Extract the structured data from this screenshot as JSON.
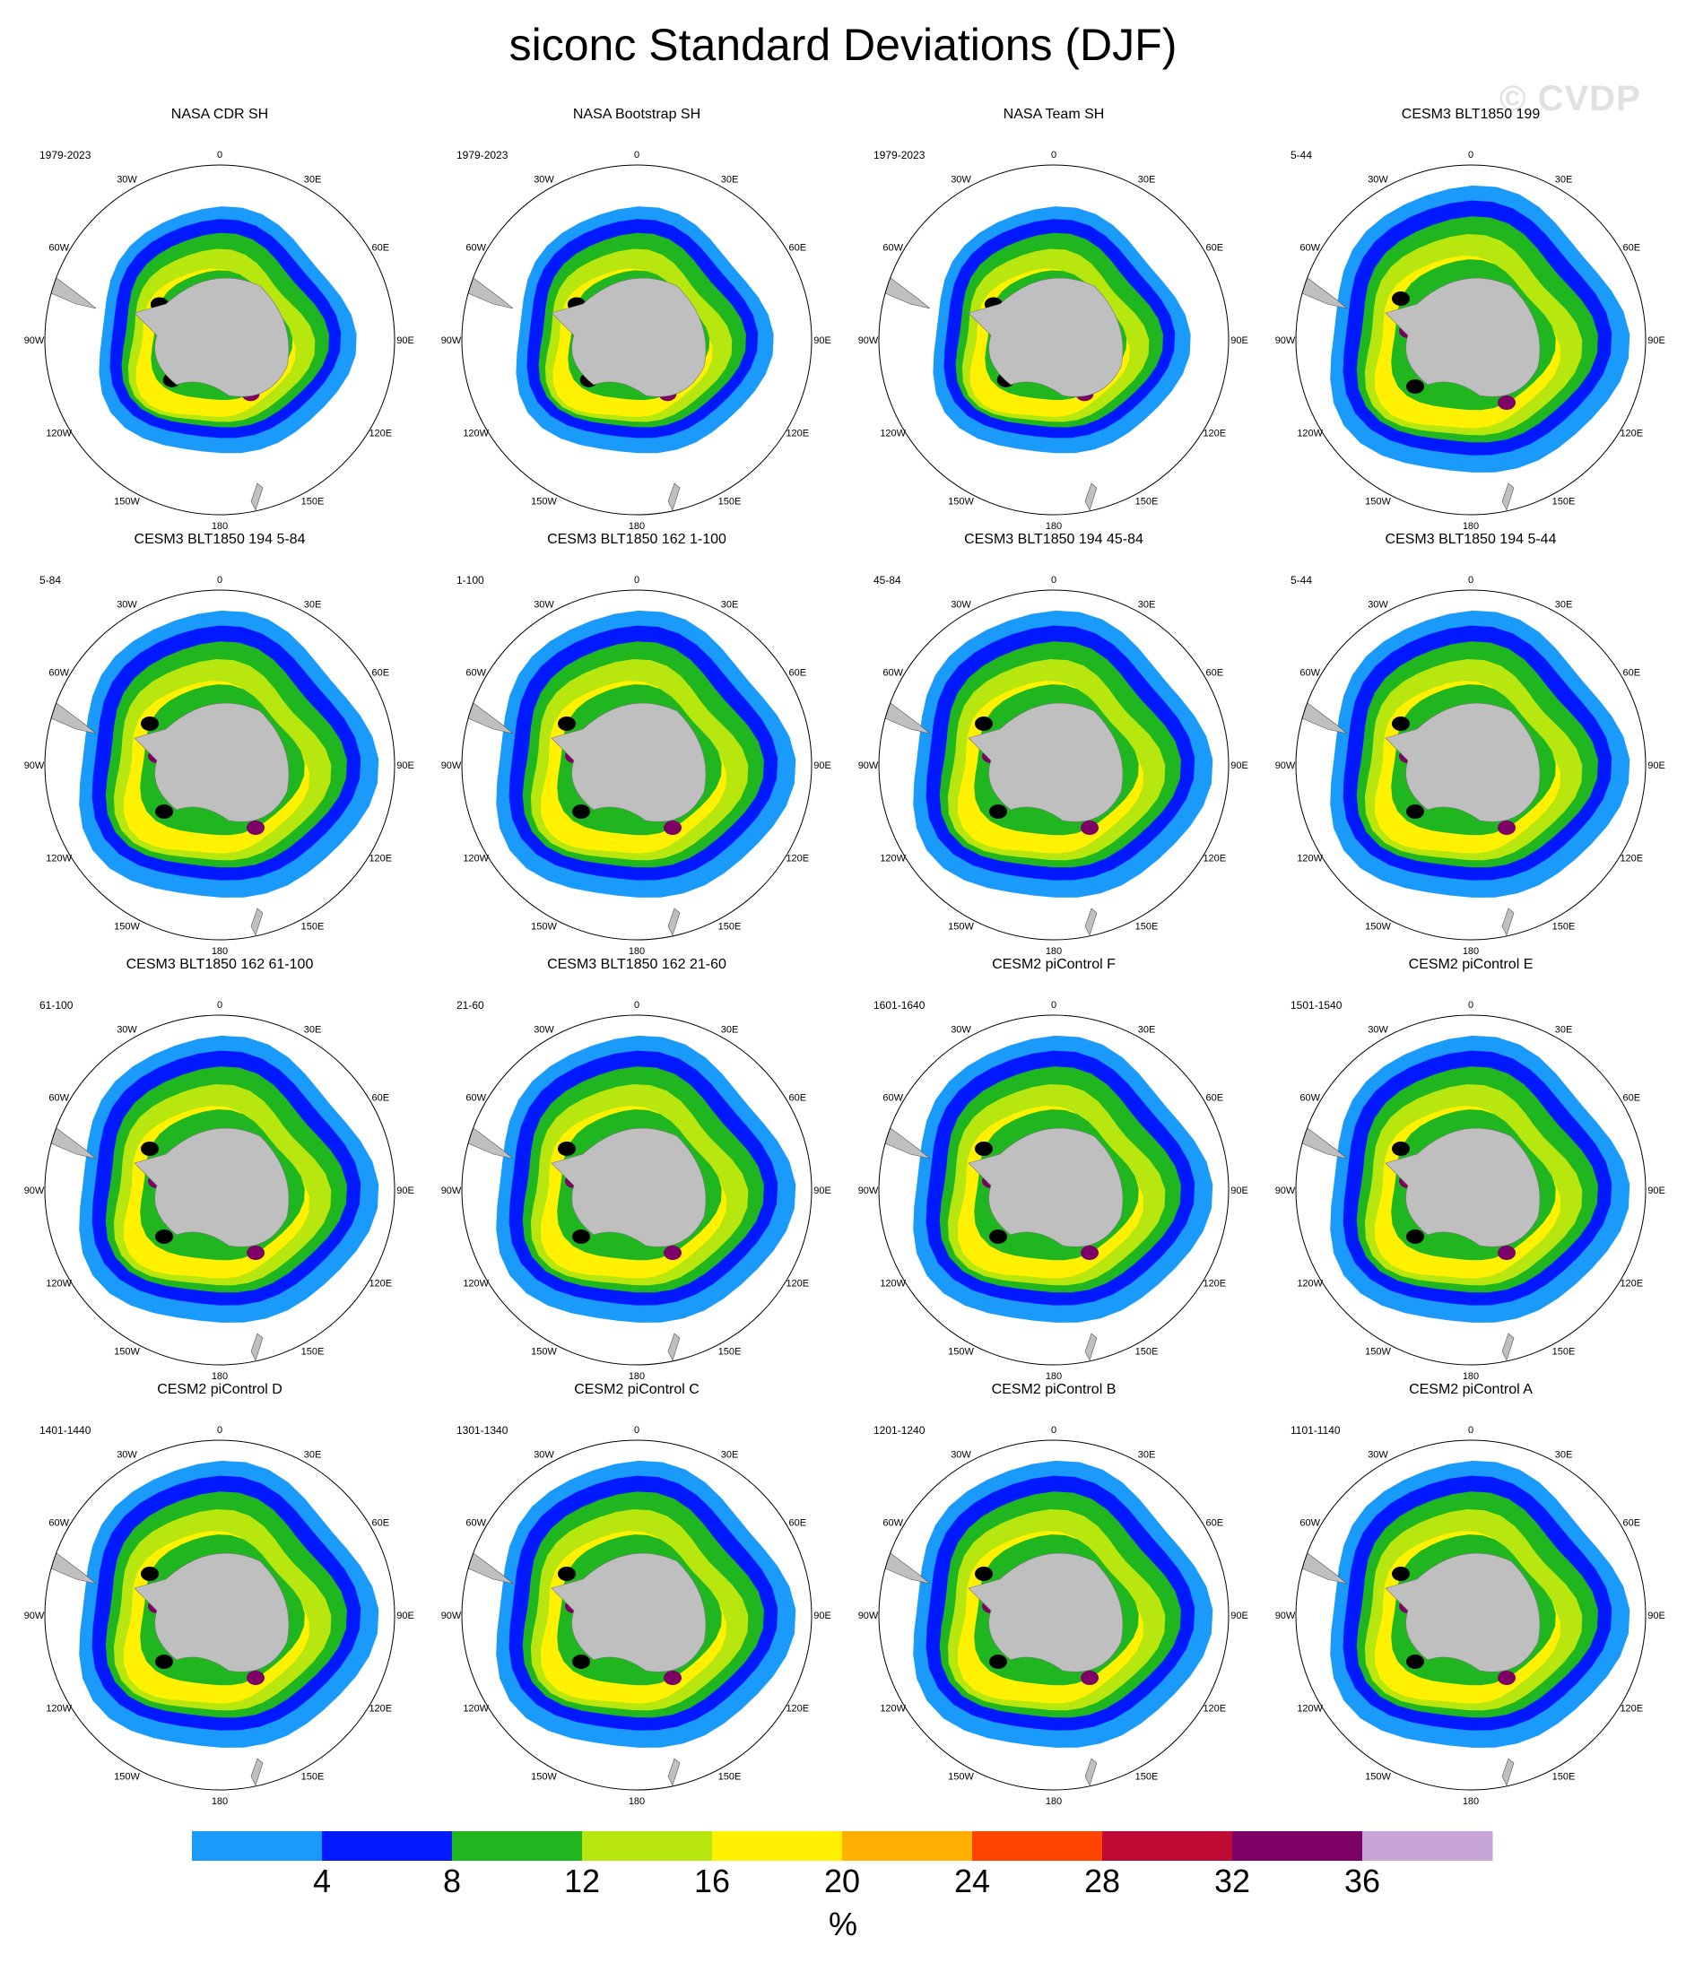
{
  "title": "siconc Standard Deviations (DJF)",
  "watermark": "© CVDP",
  "longitude_labels": [
    "0",
    "30E",
    "60E",
    "90E",
    "120E",
    "150E",
    "180",
    "150W",
    "120W",
    "90W",
    "60W",
    "30W"
  ],
  "panels": [
    {
      "title": "NASA CDR SH",
      "period": "1979-2023",
      "style": "obs"
    },
    {
      "title": "NASA Bootstrap SH",
      "period": "1979-2023",
      "style": "obs"
    },
    {
      "title": "NASA Team SH",
      "period": "1979-2023",
      "style": "obs"
    },
    {
      "title": "CESM3 BLT1850 199",
      "period": "5-44",
      "style": "model"
    },
    {
      "title": "CESM3 BLT1850 194 5-84",
      "period": "5-84",
      "style": "model"
    },
    {
      "title": "CESM3 BLT1850 162 1-100",
      "period": "1-100",
      "style": "model"
    },
    {
      "title": "CESM3 BLT1850 194 45-84",
      "period": "45-84",
      "style": "model"
    },
    {
      "title": "CESM3 BLT1850 194 5-44",
      "period": "5-44",
      "style": "model"
    },
    {
      "title": "CESM3 BLT1850 162 61-100",
      "period": "61-100",
      "style": "model"
    },
    {
      "title": "CESM3 BLT1850 162 21-60",
      "period": "21-60",
      "style": "model"
    },
    {
      "title": "CESM2 piControl F",
      "period": "1601-1640",
      "style": "model"
    },
    {
      "title": "CESM2 piControl E",
      "period": "1501-1540",
      "style": "model"
    },
    {
      "title": "CESM2 piControl D",
      "period": "1401-1440",
      "style": "model"
    },
    {
      "title": "CESM2 piControl C",
      "period": "1301-1340",
      "style": "model"
    },
    {
      "title": "CESM2 piControl B",
      "period": "1201-1240",
      "style": "model"
    },
    {
      "title": "CESM2 piControl A",
      "period": "1101-1140",
      "style": "model"
    }
  ],
  "colorbar": {
    "units": "%",
    "labels": [
      "4",
      "8",
      "12",
      "16",
      "20",
      "24",
      "28",
      "32",
      "36"
    ],
    "colors": [
      "#1a9afb",
      "#0019ff",
      "#20b620",
      "#b8e60f",
      "#fff100",
      "#ffb000",
      "#ff4500",
      "#bf0a36",
      "#7d0066",
      "#c8a5d7"
    ]
  },
  "land_color": "#bfbfbf"
}
